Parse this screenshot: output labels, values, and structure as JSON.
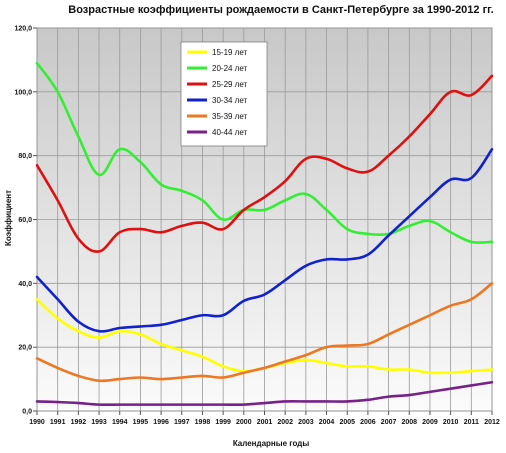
{
  "chart_data": {
    "type": "line",
    "title": "Возрастные коэффициенты рождаемости в Санкт-Петербурге за 1990-2012 гг.",
    "xlabel": "Календарные годы",
    "ylabel": "Коэффициент",
    "x": [
      "1990",
      "1991",
      "1992",
      "1993",
      "1994",
      "1995",
      "1996",
      "1997",
      "1998",
      "1999",
      "2000",
      "2001",
      "2002",
      "2003",
      "2004",
      "2005",
      "2006",
      "2007",
      "2008",
      "2009",
      "2010",
      "2011",
      "2012"
    ],
    "ylim": [
      0,
      120
    ],
    "yticks": [
      "0,0",
      "20,0",
      "40,0",
      "60,0",
      "80,0",
      "100,0",
      "120,0"
    ],
    "grid": true,
    "legend_position": "top-center",
    "series": [
      {
        "name": "15-19 лет",
        "color": "#ffff00",
        "values": [
          35,
          29,
          25,
          23,
          25,
          24,
          21,
          19,
          17,
          14,
          12.5,
          13.5,
          15,
          16,
          15,
          14,
          14,
          13,
          13,
          12,
          12,
          12.5,
          13
        ]
      },
      {
        "name": "20-24 лет",
        "color": "#33ee33",
        "values": [
          109,
          100,
          86,
          74,
          82,
          78,
          71,
          69,
          66,
          60,
          63,
          63,
          66,
          68,
          63,
          57,
          55.5,
          55.5,
          58,
          59.5,
          56,
          53,
          53
        ]
      },
      {
        "name": "25-29 лет",
        "color": "#dd1111",
        "values": [
          77,
          66,
          54,
          50,
          56,
          57,
          56,
          58,
          59,
          57,
          63,
          67,
          72,
          79,
          79,
          76,
          75,
          80,
          86,
          93,
          100,
          99,
          105
        ]
      },
      {
        "name": "30-34 лет",
        "color": "#1122cc",
        "values": [
          42,
          35,
          28,
          25,
          26,
          26.5,
          27,
          28.5,
          30,
          30,
          34.5,
          36.5,
          41,
          45.5,
          47.5,
          47.5,
          49,
          55,
          61,
          67,
          72.5,
          73,
          82
        ]
      },
      {
        "name": "35-39 лет",
        "color": "#ee7722",
        "values": [
          16.5,
          13.5,
          11,
          9.5,
          10,
          10.5,
          10,
          10.5,
          11,
          10.5,
          12,
          13.5,
          15.5,
          17.5,
          20,
          20.5,
          21,
          24,
          27,
          30,
          33,
          35,
          40
        ]
      },
      {
        "name": "40-44 лет",
        "color": "#772288",
        "values": [
          3,
          2.8,
          2.5,
          2,
          2,
          2,
          2,
          2,
          2,
          2,
          2,
          2.5,
          3,
          3,
          3,
          3,
          3.5,
          4.5,
          5,
          6,
          7,
          8,
          9
        ]
      }
    ]
  }
}
